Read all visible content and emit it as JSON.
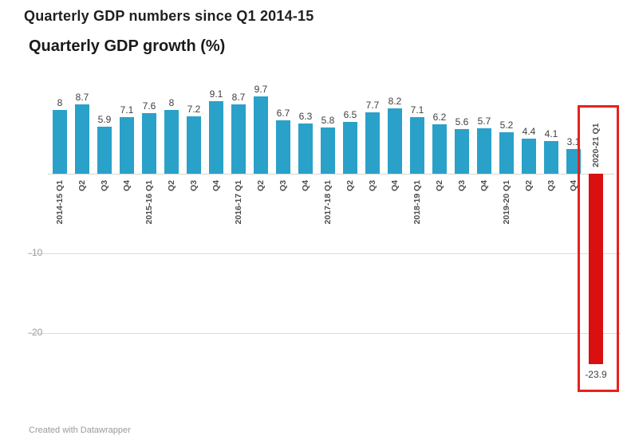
{
  "page": {
    "title": "Quarterly GDP numbers since Q1 2014-15"
  },
  "chart": {
    "title": "Quarterly GDP growth (%)",
    "footer": "Created with Datawrapper",
    "colors": {
      "bar": "#2aa1c9",
      "negative_bar": "#da0f0f",
      "highlight_box": "#e8211d",
      "grid": "#dcdcdc",
      "axis_label": "#9b9b9b",
      "value_label": "#3f3f3f",
      "category_label": "#4d4d4d"
    }
  },
  "chart_data": {
    "type": "bar",
    "title": "Quarterly GDP growth (%)",
    "categories": [
      "2014-15 Q1",
      "Q2",
      "Q3",
      "Q4",
      "2015-16 Q1",
      "Q2",
      "Q3",
      "Q4",
      "2016-17 Q1",
      "Q2",
      "Q3",
      "Q4",
      "2017-18 Q1",
      "Q2",
      "Q3",
      "Q4",
      "2018-19 Q1",
      "Q2",
      "Q3",
      "Q4",
      "2019-20 Q1",
      "Q2",
      "Q3",
      "Q4",
      "2020-21 Q1"
    ],
    "values": [
      8,
      8.7,
      5.9,
      7.1,
      7.6,
      8,
      7.2,
      9.1,
      8.7,
      9.7,
      6.7,
      6.3,
      5.8,
      6.5,
      7.7,
      8.2,
      7.1,
      6.2,
      5.6,
      5.7,
      5.2,
      4.4,
      4.1,
      3.1,
      -23.9
    ],
    "xlabel": "",
    "ylabel": "",
    "ylim": [
      -25,
      12
    ],
    "yticks": [
      -10,
      -20
    ],
    "grid": true,
    "legend": false,
    "highlight_index": 24,
    "highlight_label": "-23.9"
  }
}
